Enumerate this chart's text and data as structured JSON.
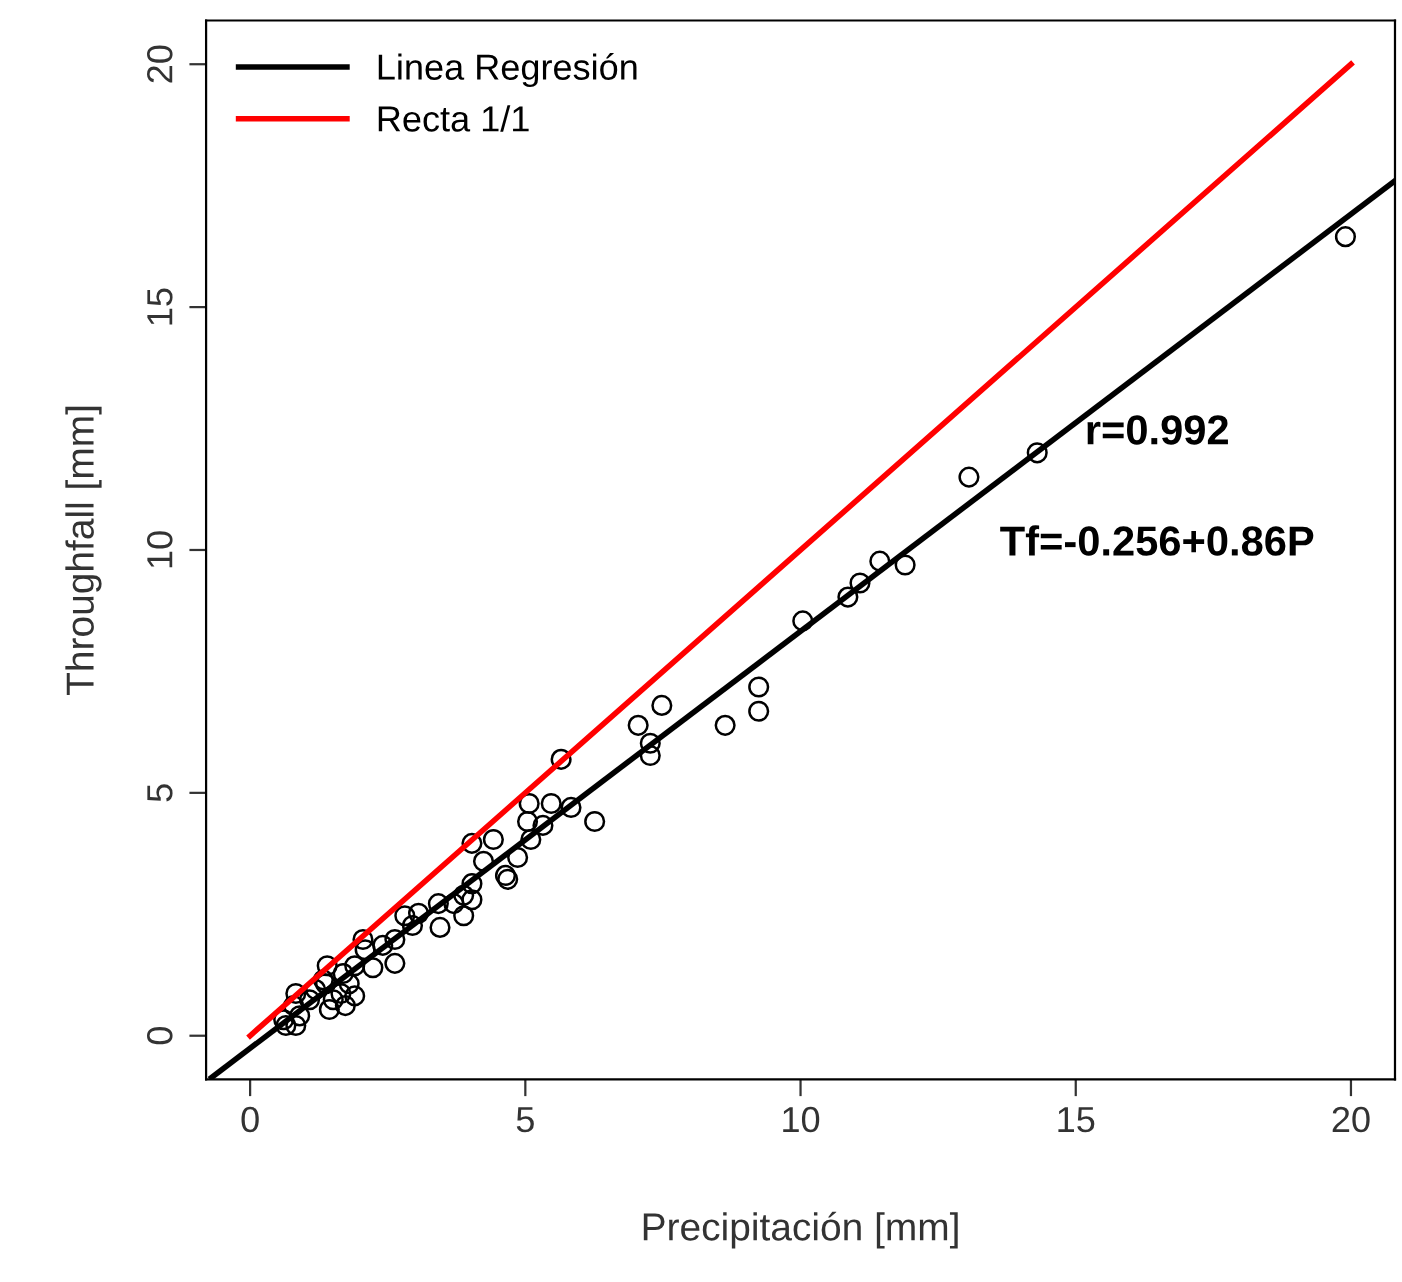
{
  "chart_data": {
    "type": "scatter",
    "xlabel": "Precipitación [mm]",
    "ylabel": "Throughfall [mm]",
    "xlim": [
      -0.8,
      20.8
    ],
    "ylim": [
      -0.9,
      20.9
    ],
    "xticks": [
      0,
      5,
      10,
      15,
      20
    ],
    "yticks": [
      0,
      5,
      10,
      15,
      20
    ],
    "grid": false,
    "legend": "top left",
    "annotations": [
      "r=0.992",
      "Tf=-0.256+0.86P"
    ],
    "series": [
      {
        "marker": "circle",
        "color": "#000000",
        "x": [
          19.9,
          14.3,
          13.06,
          11.44,
          11.9,
          11.08,
          10.86,
          10.04,
          9.24,
          9.24,
          8.63,
          7.48,
          7.05,
          7.27,
          7.27,
          5.65,
          6.26,
          5.83,
          5.47,
          5.07,
          5.04,
          4.42,
          4.03,
          4.24,
          4.86,
          4.64,
          4.68,
          5.32,
          5.1,
          4.03,
          3.88,
          4.03,
          3.88,
          3.7,
          3.42,
          3.45,
          3.06,
          2.81,
          2.95,
          2.63,
          2.63,
          2.23,
          2.41,
          2.09,
          2.05,
          1.9,
          1.69,
          1.8,
          1.65,
          1.9,
          1.4,
          1.37,
          1.44,
          1.19,
          1.08,
          0.83,
          0.79,
          0.9,
          0.65,
          0.61,
          0.83,
          1.51,
          1.33,
          1.73
        ],
        "values": [
          16.45,
          12.0,
          11.5,
          9.77,
          9.69,
          9.32,
          9.03,
          8.54,
          7.18,
          6.68,
          6.39,
          6.8,
          6.39,
          6.02,
          5.77,
          5.69,
          4.41,
          4.7,
          4.78,
          4.78,
          4.41,
          4.04,
          3.96,
          3.59,
          3.67,
          3.3,
          3.22,
          4.33,
          4.04,
          3.13,
          2.89,
          2.8,
          2.47,
          2.72,
          2.72,
          2.23,
          2.52,
          2.47,
          2.27,
          1.98,
          1.49,
          1.4,
          1.86,
          1.77,
          1.98,
          1.44,
          1.28,
          1.07,
          0.87,
          0.82,
          1.44,
          1.07,
          0.54,
          0.95,
          0.74,
          0.87,
          0.62,
          0.41,
          0.21,
          0.33,
          0.21,
          0.74,
          1.15,
          0.62
        ]
      },
      {
        "type": "line",
        "name": "Linea Regresión",
        "color": "#000000",
        "x": [
          -0.7,
          20.8
        ],
        "values": [
          -0.86,
          17.6
        ]
      },
      {
        "type": "line",
        "name": "Recta 1/1",
        "color": "#ff0000",
        "x": [
          0,
          20
        ],
        "values": [
          0,
          20
        ]
      }
    ]
  }
}
